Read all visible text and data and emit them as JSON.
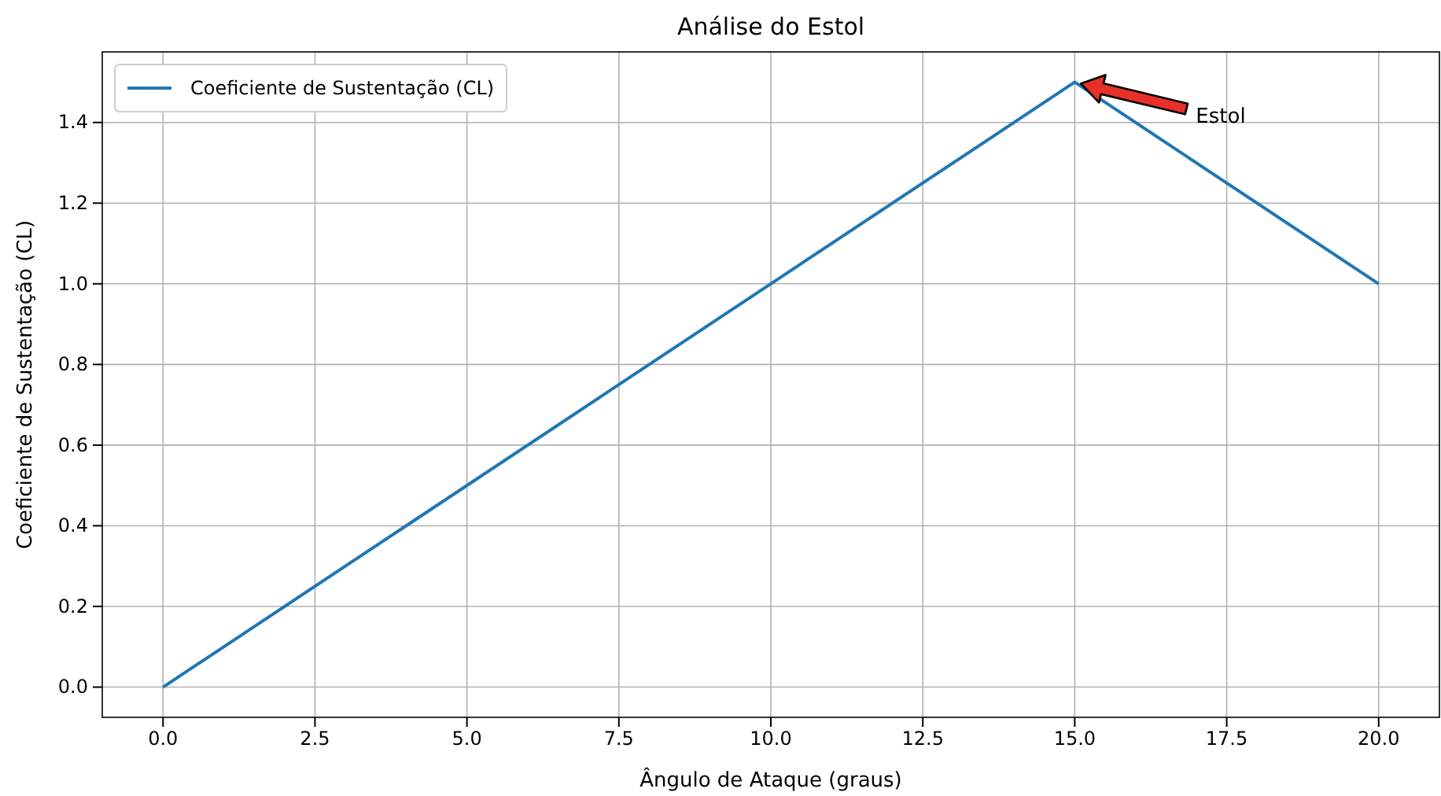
{
  "chart_data": {
    "type": "line",
    "title": "Análise do Estol",
    "xlabel": "Ângulo de Ataque (graus)",
    "ylabel": "Coeficiente de Sustentação (CL)",
    "x": [
      0,
      15,
      20
    ],
    "series": [
      {
        "name": "Coeficiente de Sustentação (CL)",
        "color": "#1f77b4",
        "values": [
          0,
          1.5,
          1.0
        ]
      }
    ],
    "xlim": [
      -1,
      21
    ],
    "xticks": [
      {
        "value": 0,
        "label": "0.0"
      },
      {
        "value": 2.5,
        "label": "2.5"
      },
      {
        "value": 5,
        "label": "5.0"
      },
      {
        "value": 7.5,
        "label": "7.5"
      },
      {
        "value": 10,
        "label": "10.0"
      },
      {
        "value": 12.5,
        "label": "12.5"
      },
      {
        "value": 15,
        "label": "15.0"
      },
      {
        "value": 17.5,
        "label": "17.5"
      },
      {
        "value": 20,
        "label": "20.0"
      }
    ],
    "ylim": [
      -0.075,
      1.575
    ],
    "yticks": [
      {
        "value": 0,
        "label": "0.0"
      },
      {
        "value": 0.2,
        "label": "0.2"
      },
      {
        "value": 0.4,
        "label": "0.4"
      },
      {
        "value": 0.6,
        "label": "0.6"
      },
      {
        "value": 0.8,
        "label": "0.8"
      },
      {
        "value": 1,
        "label": "1.0"
      },
      {
        "value": 1.2,
        "label": "1.2"
      },
      {
        "value": 1.4,
        "label": "1.4"
      }
    ],
    "annotations": [
      "Estol"
    ],
    "grid": true,
    "legend": "top left",
    "marker": "none",
    "line_style": "solid"
  }
}
